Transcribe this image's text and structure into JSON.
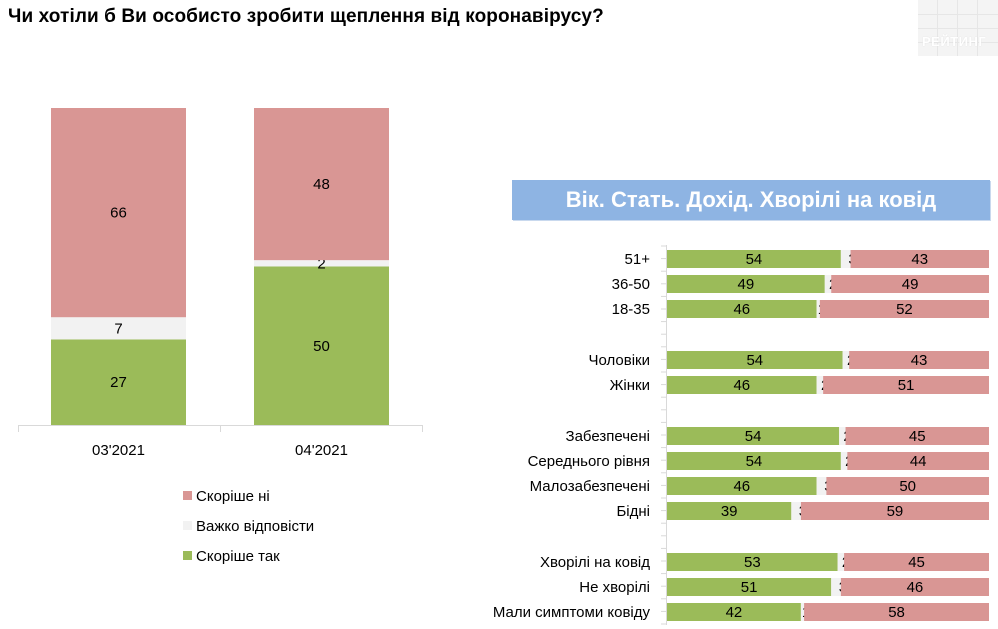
{
  "title": "Чи хотіли б Ви особисто зробити щеплення від коронавірусу?",
  "logo_text": "РЕЙТИНГ",
  "group_banner": "Вік. Стать. Дохід. Хворілі на ковід",
  "colors": {
    "no": "#d99694",
    "hard": "#f2f2f2",
    "yes": "#9bbb59",
    "banner": "#8eb4e3"
  },
  "legend": [
    {
      "key": "no",
      "label": "Скоріше ні"
    },
    {
      "key": "hard",
      "label": "Важко відповісти"
    },
    {
      "key": "yes",
      "label": "Скоріше так"
    }
  ],
  "chart_data": [
    {
      "type": "bar",
      "stacked": true,
      "categories": [
        "03'2021",
        "04'2021"
      ],
      "series": [
        {
          "name": "Скоріше так",
          "values": [
            27,
            50
          ]
        },
        {
          "name": "Важко відповісти",
          "values": [
            7,
            2
          ]
        },
        {
          "name": "Скоріше ні",
          "values": [
            66,
            48
          ]
        }
      ],
      "ylim": [
        0,
        100
      ],
      "grid": false,
      "legend_position": "bottom"
    },
    {
      "type": "bar",
      "orientation": "horizontal",
      "stacked": true,
      "groups": [
        {
          "rows": [
            {
              "label": "51+",
              "values": [
                54,
                3,
                43
              ]
            },
            {
              "label": "36-50",
              "values": [
                49,
                2,
                49
              ]
            },
            {
              "label": "18-35",
              "values": [
                46,
                1,
                52
              ]
            }
          ]
        },
        {
          "rows": [
            {
              "label": "Чоловіки",
              "values": [
                54,
                2,
                43
              ]
            },
            {
              "label": "Жінки",
              "values": [
                46,
                2,
                51
              ]
            }
          ]
        },
        {
          "rows": [
            {
              "label": "Забезпечені",
              "values": [
                54,
                2,
                45
              ]
            },
            {
              "label": "Середнього рівня",
              "values": [
                54,
                2,
                44
              ]
            },
            {
              "label": "Малозабезпечені",
              "values": [
                46,
                3,
                50
              ]
            },
            {
              "label": "Бідні",
              "values": [
                39,
                3,
                59
              ]
            }
          ]
        },
        {
          "rows": [
            {
              "label": "Хворілі на ковід",
              "values": [
                53,
                2,
                45
              ]
            },
            {
              "label": "Не хворілі",
              "values": [
                51,
                3,
                46
              ]
            },
            {
              "label": "Мали симптоми ковіду",
              "values": [
                42,
                1,
                58
              ]
            }
          ]
        }
      ],
      "series_order": [
        "Скоріше так",
        "Важко відповісти",
        "Скоріше ні"
      ],
      "xlim": [
        0,
        100
      ]
    }
  ]
}
